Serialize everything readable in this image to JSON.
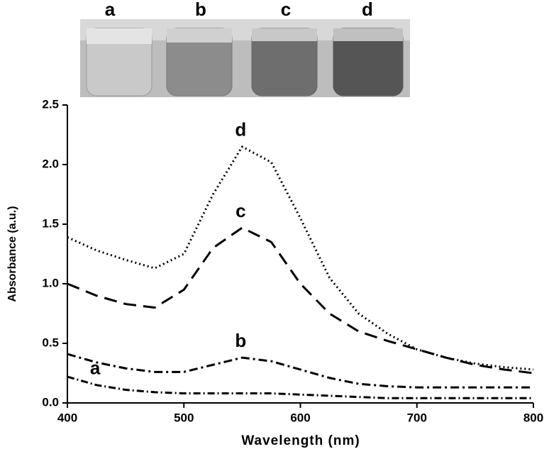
{
  "chart_data": {
    "type": "line",
    "xlabel": "Wavelength (nm)",
    "ylabel": "Absorbance (a.u.)",
    "photo_labels": [
      "a",
      "b",
      "c",
      "d"
    ],
    "x": [
      400,
      425,
      450,
      475,
      500,
      525,
      550,
      575,
      600,
      625,
      650,
      675,
      700,
      725,
      750,
      775,
      800
    ],
    "series": [
      {
        "name": "a",
        "color": "#000000",
        "dash": "10,4,2,4",
        "values": [
          0.22,
          0.15,
          0.11,
          0.09,
          0.08,
          0.08,
          0.08,
          0.08,
          0.07,
          0.06,
          0.05,
          0.04,
          0.04,
          0.04,
          0.04,
          0.04,
          0.04
        ]
      },
      {
        "name": "b",
        "color": "#000000",
        "dash": "12,5,3,5",
        "values": [
          0.41,
          0.34,
          0.29,
          0.26,
          0.26,
          0.32,
          0.38,
          0.35,
          0.28,
          0.21,
          0.16,
          0.14,
          0.13,
          0.13,
          0.13,
          0.13,
          0.13
        ]
      },
      {
        "name": "c",
        "color": "#000000",
        "dash": "18,10",
        "values": [
          1.0,
          0.9,
          0.83,
          0.8,
          0.95,
          1.3,
          1.47,
          1.35,
          1.0,
          0.75,
          0.6,
          0.52,
          0.45,
          0.38,
          0.32,
          0.28,
          0.25
        ]
      },
      {
        "name": "d",
        "color": "#000000",
        "dash": "2,4",
        "values": [
          1.39,
          1.28,
          1.2,
          1.13,
          1.25,
          1.75,
          2.15,
          2.02,
          1.55,
          1.05,
          0.75,
          0.58,
          0.45,
          0.38,
          0.33,
          0.3,
          0.28
        ]
      }
    ],
    "xlim": [
      400,
      800
    ],
    "xticks": [
      400,
      500,
      600,
      700,
      800
    ],
    "ylim": [
      0,
      2.5
    ],
    "yticks": [
      {
        "value": 0,
        "label": "0.0"
      },
      0.5,
      {
        "value": 1,
        "label": "1.0"
      },
      1.5,
      {
        "value": 2,
        "label": "2.0"
      },
      2.5
    ],
    "grid": false
  }
}
